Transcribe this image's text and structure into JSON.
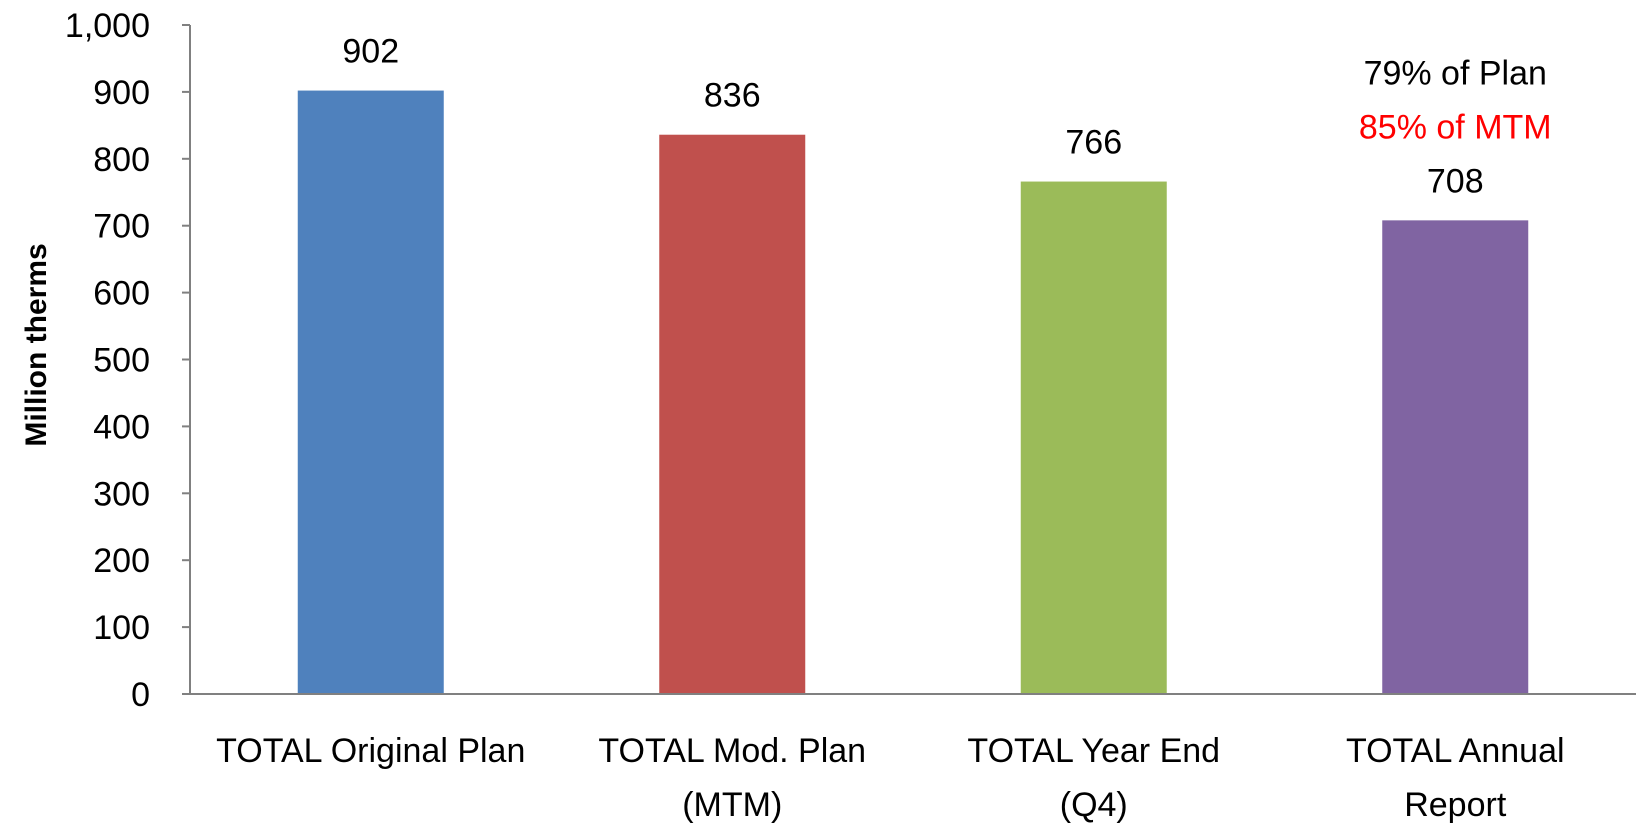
{
  "chart_data": {
    "type": "bar",
    "title": "",
    "xlabel": "",
    "ylabel": "Million therms",
    "ylim": [
      0,
      1000
    ],
    "yticks": [
      0,
      100,
      200,
      300,
      400,
      500,
      600,
      700,
      800,
      900,
      1000
    ],
    "ytick_labels": [
      "0",
      "100",
      "200",
      "300",
      "400",
      "500",
      "600",
      "700",
      "800",
      "900",
      "1,000"
    ],
    "grid": false,
    "legend": "none",
    "categories": [
      [
        "TOTAL Original Plan"
      ],
      [
        "TOTAL Mod. Plan",
        "(MTM)"
      ],
      [
        "TOTAL Year End",
        "(Q4)"
      ],
      [
        "TOTAL Annual",
        "Report"
      ]
    ],
    "values": [
      902,
      836,
      766,
      708
    ],
    "data_labels": [
      "902",
      "836",
      "766",
      "708"
    ],
    "colors": [
      "#4F81BD",
      "#C0504D",
      "#9BBB59",
      "#8064A2"
    ],
    "annotations": [
      {
        "text": "79% of Plan",
        "color": "#000000",
        "bar_index": 3
      },
      {
        "text": "85% of MTM",
        "color": "#FF0000",
        "bar_index": 3
      }
    ]
  }
}
